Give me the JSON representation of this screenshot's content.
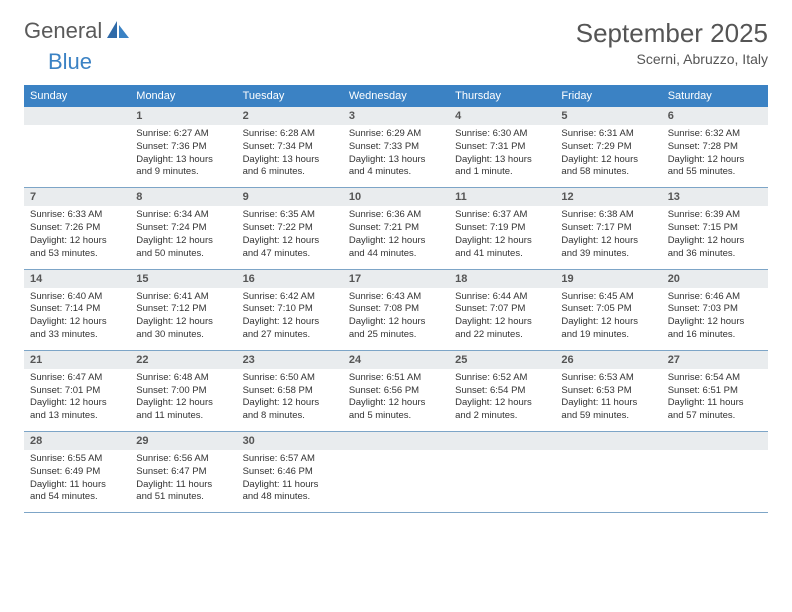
{
  "brand": {
    "name1": "General",
    "name2": "Blue"
  },
  "title": "September 2025",
  "location": "Scerni, Abruzzo, Italy",
  "colors": {
    "header_bg": "#3b82c4",
    "header_fg": "#ffffff",
    "daynum_bg": "#e9ecee",
    "rule": "#7da5c7",
    "text": "#333333",
    "brand_gray": "#5a5a5a",
    "brand_blue": "#3b82c4"
  },
  "weekdays": [
    "Sunday",
    "Monday",
    "Tuesday",
    "Wednesday",
    "Thursday",
    "Friday",
    "Saturday"
  ],
  "weeks": [
    [
      {
        "n": "",
        "sr": "",
        "ss": "",
        "dl": ""
      },
      {
        "n": "1",
        "sr": "Sunrise: 6:27 AM",
        "ss": "Sunset: 7:36 PM",
        "dl": "Daylight: 13 hours and 9 minutes."
      },
      {
        "n": "2",
        "sr": "Sunrise: 6:28 AM",
        "ss": "Sunset: 7:34 PM",
        "dl": "Daylight: 13 hours and 6 minutes."
      },
      {
        "n": "3",
        "sr": "Sunrise: 6:29 AM",
        "ss": "Sunset: 7:33 PM",
        "dl": "Daylight: 13 hours and 4 minutes."
      },
      {
        "n": "4",
        "sr": "Sunrise: 6:30 AM",
        "ss": "Sunset: 7:31 PM",
        "dl": "Daylight: 13 hours and 1 minute."
      },
      {
        "n": "5",
        "sr": "Sunrise: 6:31 AM",
        "ss": "Sunset: 7:29 PM",
        "dl": "Daylight: 12 hours and 58 minutes."
      },
      {
        "n": "6",
        "sr": "Sunrise: 6:32 AM",
        "ss": "Sunset: 7:28 PM",
        "dl": "Daylight: 12 hours and 55 minutes."
      }
    ],
    [
      {
        "n": "7",
        "sr": "Sunrise: 6:33 AM",
        "ss": "Sunset: 7:26 PM",
        "dl": "Daylight: 12 hours and 53 minutes."
      },
      {
        "n": "8",
        "sr": "Sunrise: 6:34 AM",
        "ss": "Sunset: 7:24 PM",
        "dl": "Daylight: 12 hours and 50 minutes."
      },
      {
        "n": "9",
        "sr": "Sunrise: 6:35 AM",
        "ss": "Sunset: 7:22 PM",
        "dl": "Daylight: 12 hours and 47 minutes."
      },
      {
        "n": "10",
        "sr": "Sunrise: 6:36 AM",
        "ss": "Sunset: 7:21 PM",
        "dl": "Daylight: 12 hours and 44 minutes."
      },
      {
        "n": "11",
        "sr": "Sunrise: 6:37 AM",
        "ss": "Sunset: 7:19 PM",
        "dl": "Daylight: 12 hours and 41 minutes."
      },
      {
        "n": "12",
        "sr": "Sunrise: 6:38 AM",
        "ss": "Sunset: 7:17 PM",
        "dl": "Daylight: 12 hours and 39 minutes."
      },
      {
        "n": "13",
        "sr": "Sunrise: 6:39 AM",
        "ss": "Sunset: 7:15 PM",
        "dl": "Daylight: 12 hours and 36 minutes."
      }
    ],
    [
      {
        "n": "14",
        "sr": "Sunrise: 6:40 AM",
        "ss": "Sunset: 7:14 PM",
        "dl": "Daylight: 12 hours and 33 minutes."
      },
      {
        "n": "15",
        "sr": "Sunrise: 6:41 AM",
        "ss": "Sunset: 7:12 PM",
        "dl": "Daylight: 12 hours and 30 minutes."
      },
      {
        "n": "16",
        "sr": "Sunrise: 6:42 AM",
        "ss": "Sunset: 7:10 PM",
        "dl": "Daylight: 12 hours and 27 minutes."
      },
      {
        "n": "17",
        "sr": "Sunrise: 6:43 AM",
        "ss": "Sunset: 7:08 PM",
        "dl": "Daylight: 12 hours and 25 minutes."
      },
      {
        "n": "18",
        "sr": "Sunrise: 6:44 AM",
        "ss": "Sunset: 7:07 PM",
        "dl": "Daylight: 12 hours and 22 minutes."
      },
      {
        "n": "19",
        "sr": "Sunrise: 6:45 AM",
        "ss": "Sunset: 7:05 PM",
        "dl": "Daylight: 12 hours and 19 minutes."
      },
      {
        "n": "20",
        "sr": "Sunrise: 6:46 AM",
        "ss": "Sunset: 7:03 PM",
        "dl": "Daylight: 12 hours and 16 minutes."
      }
    ],
    [
      {
        "n": "21",
        "sr": "Sunrise: 6:47 AM",
        "ss": "Sunset: 7:01 PM",
        "dl": "Daylight: 12 hours and 13 minutes."
      },
      {
        "n": "22",
        "sr": "Sunrise: 6:48 AM",
        "ss": "Sunset: 7:00 PM",
        "dl": "Daylight: 12 hours and 11 minutes."
      },
      {
        "n": "23",
        "sr": "Sunrise: 6:50 AM",
        "ss": "Sunset: 6:58 PM",
        "dl": "Daylight: 12 hours and 8 minutes."
      },
      {
        "n": "24",
        "sr": "Sunrise: 6:51 AM",
        "ss": "Sunset: 6:56 PM",
        "dl": "Daylight: 12 hours and 5 minutes."
      },
      {
        "n": "25",
        "sr": "Sunrise: 6:52 AM",
        "ss": "Sunset: 6:54 PM",
        "dl": "Daylight: 12 hours and 2 minutes."
      },
      {
        "n": "26",
        "sr": "Sunrise: 6:53 AM",
        "ss": "Sunset: 6:53 PM",
        "dl": "Daylight: 11 hours and 59 minutes."
      },
      {
        "n": "27",
        "sr": "Sunrise: 6:54 AM",
        "ss": "Sunset: 6:51 PM",
        "dl": "Daylight: 11 hours and 57 minutes."
      }
    ],
    [
      {
        "n": "28",
        "sr": "Sunrise: 6:55 AM",
        "ss": "Sunset: 6:49 PM",
        "dl": "Daylight: 11 hours and 54 minutes."
      },
      {
        "n": "29",
        "sr": "Sunrise: 6:56 AM",
        "ss": "Sunset: 6:47 PM",
        "dl": "Daylight: 11 hours and 51 minutes."
      },
      {
        "n": "30",
        "sr": "Sunrise: 6:57 AM",
        "ss": "Sunset: 6:46 PM",
        "dl": "Daylight: 11 hours and 48 minutes."
      },
      {
        "n": "",
        "sr": "",
        "ss": "",
        "dl": ""
      },
      {
        "n": "",
        "sr": "",
        "ss": "",
        "dl": ""
      },
      {
        "n": "",
        "sr": "",
        "ss": "",
        "dl": ""
      },
      {
        "n": "",
        "sr": "",
        "ss": "",
        "dl": ""
      }
    ]
  ]
}
